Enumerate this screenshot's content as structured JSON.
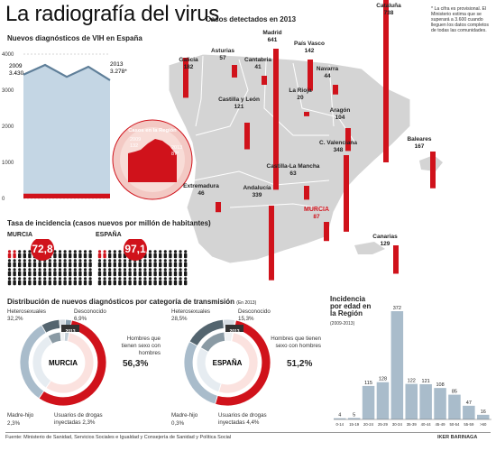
{
  "title": "La radiografía del virus",
  "vih_chart": {
    "heading": "Nuevos diagnósticos de VIH en España",
    "y_ticks": [
      "4000",
      "3000",
      "2000",
      "1000",
      "0"
    ],
    "start_year": "2009",
    "start_value": "3.430",
    "end_year": "2013",
    "end_value": "3.278*",
    "region_label": "Casos en la Región",
    "region_start_year": "2009",
    "region_start_value": "132",
    "region_end_year": "2013",
    "region_end_value": "87*"
  },
  "chart_data": [
    {
      "type": "area",
      "title": "Nuevos diagnósticos de VIH en España",
      "x": [
        2009,
        2010,
        2011,
        2012,
        2013
      ],
      "series": [
        {
          "name": "España",
          "values": [
            3430,
            3700,
            3370,
            3650,
            3278
          ]
        },
        {
          "name": "Región de Murcia",
          "values": [
            132,
            120,
            110,
            115,
            87
          ]
        }
      ],
      "ylim": [
        0,
        4000
      ]
    },
    {
      "type": "bar",
      "title": "Casos detectados en 2013",
      "categories": [
        "Galicia",
        "Asturias",
        "Cantabria",
        "Madrid",
        "País Vasco",
        "Navarra",
        "La Rioja",
        "Cataluña",
        "Castilla y León",
        "Aragón",
        "C. Valenciana",
        "Baleares",
        "Extremadura",
        "Castilla-La Mancha",
        "Andalucía",
        "MURCIA",
        "Canarias"
      ],
      "values": [
        182,
        57,
        41,
        641,
        142,
        44,
        20,
        738,
        121,
        104,
        348,
        167,
        46,
        63,
        339,
        87,
        129
      ]
    },
    {
      "type": "pie",
      "title": "Distribución de nuevos diagnósticos por categoría de transmisión — MURCIA",
      "categories": [
        "Hombres que tienen sexo con hombres",
        "Heterosexuales",
        "Desconocido",
        "Usuarios de drogas inyectadas",
        "Madre-hijo"
      ],
      "values": [
        56.3,
        32.2,
        6.9,
        2.3,
        2.3
      ]
    },
    {
      "type": "pie",
      "title": "Distribución de nuevos diagnósticos por categoría de transmisión — ESPAÑA",
      "categories": [
        "Hombres que tienen sexo con hombres",
        "Heterosexuales",
        "Desconocido",
        "Usuarios de drogas inyectadas",
        "Madre-hijo"
      ],
      "values": [
        51.2,
        28.5,
        15.3,
        4.4,
        0.3
      ]
    },
    {
      "type": "bar",
      "title": "Incidencia por edad en la Región",
      "categories": [
        "0-14",
        "15-19",
        "20-24",
        "25-29",
        "30-34",
        "35-39",
        "40-44",
        "45-49",
        "50-54",
        "55-59",
        ">60"
      ],
      "values": [
        4,
        5,
        115,
        128,
        372,
        122,
        121,
        108,
        85,
        47,
        16
      ]
    }
  ],
  "map": {
    "heading": "Casos detectados en 2013",
    "note": "* La cifra es provisional. El Ministerio estima que se superará a 3.600 cuando lleguen los datos completos de todas las comunidades.",
    "regions": [
      {
        "name": "Galicia",
        "value": "182"
      },
      {
        "name": "Asturias",
        "value": "57"
      },
      {
        "name": "Cantabria",
        "value": "41"
      },
      {
        "name": "Madrid",
        "value": "641"
      },
      {
        "name": "País Vasco",
        "value": "142"
      },
      {
        "name": "Navarra",
        "value": "44"
      },
      {
        "name": "La Rioja",
        "value": "20"
      },
      {
        "name": "Cataluña",
        "value": "738"
      },
      {
        "name": "Castilla y León",
        "value": "121"
      },
      {
        "name": "Aragón",
        "value": "104"
      },
      {
        "name": "C. Valenciana",
        "value": "348"
      },
      {
        "name": "Baleares",
        "value": "167"
      },
      {
        "name": "Extremadura",
        "value": "46"
      },
      {
        "name": "Castilla-La Mancha",
        "value": "63"
      },
      {
        "name": "Andalucía",
        "value": "339"
      },
      {
        "name": "MURCIA",
        "value": "87"
      },
      {
        "name": "Canarias",
        "value": "129"
      }
    ]
  },
  "incidence": {
    "heading": "Tasa de incidencia (casos nuevos por millón de habitantes)",
    "murcia_label": "MURCIA",
    "murcia_value": "72,8",
    "espana_label": "ESPAÑA",
    "espana_value": "97,1"
  },
  "distribution": {
    "heading": "Distribución de nuevos diagnósticos por categoría de transmisión",
    "heading_note": "(En 2013)",
    "year_badge": "2013",
    "murcia": {
      "center": "MURCIA",
      "hetero_label": "Heterosexuales",
      "hetero_value": "32,2%",
      "desc_label": "Desconocido",
      "desc_value": "6,9%",
      "hsh_label": "Hombres que tienen sexo con hombres",
      "hsh_value": "56,3%",
      "madre_label": "Madre-hijo",
      "madre_value": "2,3%",
      "udi_label": "Usuarios de drogas inyectadas",
      "udi_value": "2,3%"
    },
    "espana": {
      "center": "ESPAÑA",
      "hetero_label": "Heterosexuales",
      "hetero_value": "28,5%",
      "desc_label": "Desconocido",
      "desc_value": "15,3%",
      "hsh_label": "Hombres que tienen sexo con hombres",
      "hsh_value": "51,2%",
      "madre_label": "Madre-hijo",
      "madre_value": "0,3%",
      "udi_label": "Usuarios de drogas inyectadas",
      "udi_value": "4,4%"
    }
  },
  "age_chart": {
    "heading": "Incidencia por edad en la Región",
    "years": "(2009-2013)"
  },
  "footer": {
    "source": "Fuente: Ministerio de Sanidad, Servicios Sociales e Igualdad y Consejería de Sanidad y Política Social",
    "author": "IKER BARINAGA"
  },
  "colors": {
    "red": "#d0121b",
    "blue_fill": "#c4d6e4",
    "blue_line": "#5f7f99",
    "gray_bar": "#a9bccb",
    "map_gray": "#d4d4d4"
  }
}
